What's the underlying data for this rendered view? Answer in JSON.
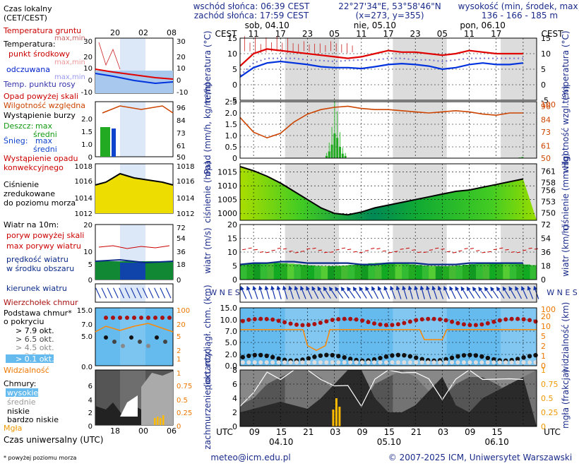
{
  "header": {
    "sunrise": "wschód słońca: 06:39 CEST",
    "sunset": "zachód słońca: 17:59 CEST",
    "coords": "22°27'34\"E, 53°58'46\"N",
    "grid": "(x=273, y=355)",
    "elev_label": "wysokość (min, środek, max)",
    "elev_values": "136 - 166 - 185 m"
  },
  "time": {
    "cest_label": "CEST",
    "utc_label": "UTC",
    "days": [
      "sob, 04.10",
      "nie, 05.10",
      "pon, 06.10"
    ],
    "cest_ticks": [
      "11",
      "17",
      "23",
      "05",
      "11",
      "17",
      "23",
      "05",
      "11",
      "17"
    ],
    "utc_ticks": [
      "09",
      "15",
      "21",
      "03",
      "09",
      "15",
      "21",
      "03",
      "09",
      "15"
    ],
    "utc_dates": [
      "04.10",
      "05.10",
      "06.10"
    ],
    "legend_top_ticks": [
      "20",
      "02",
      "08"
    ],
    "legend_bottom_ticks": [
      "18",
      "00",
      "06"
    ]
  },
  "legend": {
    "czas_lokalny": "Czas lokalny",
    "czas_lokalny2": "(CET/CEST)",
    "temp_gruntu": "Temperatura gruntu",
    "max_min1": "max,min",
    "temperatura": "Temperatura:",
    "punkt_srodkowy": "punkt środkowy",
    "max_min2": "max,min",
    "odczuwana": "odczuwana",
    "max_min3": "max,min",
    "punkt_rosy": "Temp. punktu rosy",
    "opad_powyzej": "Opad powyżej skali",
    "wilgotnosc": "Wilgotność względna",
    "burza": "Wystąpienie burzy",
    "deszcz": "Deszcz:",
    "max1": "max",
    "srednia1": "średni",
    "snieg": "Śnieg:",
    "max2": "max",
    "srednia2": "średni",
    "wystapienie1": "Wystąpienie opadu",
    "wystapienie2": "konwekcyjnego",
    "cisnienie1": "Ciśnienie",
    "cisnienie2": "zredukowane",
    "cisnienie3": "do poziomu morza",
    "wiatr": "Wiatr na 10m:",
    "poryw_skali": "poryw powyżej skali",
    "max_porywy": "max porywy wiatru",
    "predkosc1": "prędkość wiatru",
    "predkosc2": "w środku obszaru",
    "kierunek": "kierunek wiatru",
    "wierzcholek": "Wierzchołek chmur",
    "podstawa1": "Podstawa chmur*",
    "podstawa2": "o pokryciu",
    "okt79": "> 7.9 okt.",
    "okt65": "> 6.5 okt.",
    "okt45": "> 4.5 okt.",
    "okt25": "> 2.5 okt.",
    "okt01": "> 0.1 okt.",
    "widzialnosc": "Widzialność",
    "chmury": "Chmury:",
    "wysokie": "wysokie",
    "srednie": "średnie",
    "niskie": "niskie",
    "bardzo_niskie": "bardzo niskie",
    "mgla": "Mgła",
    "czas_utc": "Czas uniwersalny (UTC)",
    "footnote": "* powyżej poziomu morza"
  },
  "axes": {
    "temp_l": "temperatura (°C)",
    "temp_r": "temperatura (°C)",
    "opad_l": "opad (mm/h, kg/m²/h)",
    "opad_r": "wilgotność wzgl. (%)",
    "pres_l": "ciśnienie (hPa)",
    "pres_r": "ciśnienie (mm Hg)",
    "wind_l": "wiatr (m/s)",
    "wind_r": "wiatr (km/h)",
    "dir_l": "W N E S",
    "cloud_l": "pion. rozciągł. chm. (km)",
    "cloud_r": "widzialność (km)",
    "cover_l": "zachmurzenie (oktanty)",
    "cover_r": "mgła (frakcja)"
  },
  "footer": {
    "email": "meteo@icm.edu.pl",
    "copyright": "© 2007-2025 ICM, Uniwersytet Warszawski"
  },
  "colors": {
    "temp": "#e00000",
    "feel": "#0033dd",
    "dew": "#7777cc",
    "humidity": "#cc4400",
    "rain": "#22aa22",
    "snow": "#1144cc",
    "pressure": "#000000",
    "wind_mean": "#0a2a88",
    "gust": "#cc0000",
    "night": "#dcdcdc",
    "visibility": "#ff8800",
    "cloud_top": "#aa1111"
  },
  "chart_data": [
    {
      "type": "line",
      "title": "temperatura",
      "ylim": [
        -5,
        15
      ],
      "yticks": [
        "-5",
        "0",
        "5",
        "10",
        "15"
      ],
      "x_hours_from_start": [
        0,
        3,
        6,
        9,
        12,
        15,
        18,
        21,
        24,
        27,
        30,
        33,
        36,
        39,
        42,
        45,
        48,
        51,
        54,
        57,
        60,
        63
      ],
      "series": [
        {
          "name": "punkt środkowy",
          "values": [
            6,
            10,
            11.5,
            11,
            10.5,
            10,
            9.5,
            9,
            8.5,
            9,
            10,
            11,
            10.5,
            10.5,
            10,
            9.5,
            10,
            11,
            10.5,
            10,
            10,
            10
          ]
        },
        {
          "name": "odczuwana",
          "values": [
            2.5,
            5.5,
            7,
            7.5,
            7,
            6.5,
            5.8,
            5.5,
            5.5,
            5.2,
            5.8,
            6.5,
            6.8,
            6.5,
            6,
            5,
            5.5,
            6.5,
            7,
            6.5,
            6.5,
            7
          ]
        },
        {
          "name": "Temp. punktu rosy",
          "values": [
            3,
            7,
            8.5,
            8.5,
            8.5,
            8,
            7.8,
            7.5,
            7.8,
            8,
            8,
            8.5,
            8.5,
            8,
            8,
            7.5,
            8,
            8.5,
            8.5,
            8.5,
            8.5,
            8.5
          ]
        }
      ]
    },
    {
      "type": "line",
      "title": "opad / wilgotność",
      "ylim_left": [
        0,
        2.5
      ],
      "yticks_left": [
        "0",
        "0.5",
        "1.0",
        "1.5",
        "2.0",
        "2.5"
      ],
      "ylim_right": [
        50,
        100
      ],
      "yticks_right": [
        "50",
        "61",
        "73",
        "84",
        "96"
      ],
      "x_hours_from_start": [
        0,
        3,
        6,
        9,
        12,
        15,
        18,
        21,
        24,
        27,
        30,
        33,
        36,
        39,
        42,
        45,
        48,
        51,
        54,
        57,
        60,
        63
      ],
      "series": [
        {
          "name": "Wilgotność względna",
          "values": [
            86,
            73,
            68,
            72,
            82,
            89,
            93,
            95,
            96,
            94,
            93,
            93,
            92,
            91,
            90,
            91,
            92,
            91,
            89,
            88,
            90,
            90
          ]
        },
        {
          "name": "Deszcz średni",
          "values": [
            0,
            0,
            0,
            0,
            0,
            0,
            0.2,
            0.9,
            0.2,
            0,
            0,
            0,
            0,
            0,
            0,
            0,
            0,
            0,
            0,
            0,
            0,
            0.02
          ]
        }
      ]
    },
    {
      "type": "line",
      "title": "ciśnienie",
      "ylim_left": [
        997.5,
        1018
      ],
      "yticks_left": [
        "1000",
        "1005",
        "1010",
        "1015"
      ],
      "ylim_right": [
        748,
        763
      ],
      "yticks_right": [
        "750",
        "753",
        "756",
        "758",
        "761"
      ],
      "x_hours_from_start": [
        0,
        3,
        6,
        9,
        12,
        15,
        18,
        21,
        24,
        27,
        30,
        33,
        36,
        39,
        42,
        45,
        48,
        51,
        54,
        57,
        60,
        63
      ],
      "series": [
        {
          "name": "Ciśnienie",
          "values": [
            1017,
            1015.5,
            1013.5,
            1011,
            1008,
            1005,
            1002,
            1000,
            999.5,
            1000.5,
            1002,
            1003,
            1004,
            1005,
            1006,
            1007,
            1008,
            1008.5,
            1009.5,
            1010.5,
            1011.5,
            1012.5
          ]
        }
      ]
    },
    {
      "type": "line",
      "title": "wiatr",
      "ylim_left": [
        0,
        20
      ],
      "yticks_left": [
        "0",
        "5",
        "10",
        "15",
        "20"
      ],
      "ylim_right": [
        0,
        72
      ],
      "yticks_right": [
        "0",
        "18",
        "36",
        "54",
        "72"
      ],
      "x_hours_from_start": [
        0,
        3,
        6,
        9,
        12,
        15,
        18,
        21,
        24,
        27,
        30,
        33,
        36,
        39,
        42,
        45,
        48,
        51,
        54,
        57,
        60,
        63
      ],
      "series": [
        {
          "name": "max porywy wiatru",
          "values": [
            10.5,
            11,
            11.5,
            11,
            12,
            10.5,
            11,
            10.5,
            10.5,
            10,
            10.5,
            11,
            11,
            10.5,
            11,
            10.5,
            11,
            11,
            10.5,
            11,
            11,
            11
          ]
        },
        {
          "name": "prędkość wiatru",
          "values": [
            5.5,
            6,
            6,
            6.5,
            6.5,
            6,
            6,
            6,
            6,
            5.5,
            5.5,
            6,
            6,
            6,
            5.5,
            5.5,
            5.5,
            6,
            6,
            6,
            6,
            6
          ]
        }
      ]
    },
    {
      "type": "scatter",
      "title": "chmury",
      "ylim_left": [
        0,
        15
      ],
      "yticks_left": [
        "0.0",
        "2.0",
        "5.0",
        "7.0",
        "10.0",
        "15.0"
      ],
      "ylim_right": [
        0,
        100
      ],
      "yticks_right": [
        "0",
        "1",
        "2",
        "5",
        "10",
        "20",
        "100"
      ],
      "x_hours_from_start": [
        0,
        3,
        6,
        9,
        12,
        15,
        18,
        21,
        24,
        27,
        30,
        33,
        36,
        39,
        42,
        45,
        48,
        51,
        54,
        57,
        60,
        63
      ],
      "series": [
        {
          "name": "Wierzchołek chmur",
          "values": [
            8,
            10,
            10.5,
            10,
            10,
            9.5,
            8,
            8.5,
            10,
            9.5,
            9,
            9,
            9,
            9,
            9,
            9,
            9,
            8.5,
            9,
            9,
            8.5,
            8
          ]
        },
        {
          "name": "Widzialność",
          "values": [
            20,
            20,
            20,
            20,
            20,
            20,
            5,
            20,
            20,
            20,
            20,
            20,
            20,
            20,
            5,
            20,
            20,
            20,
            20,
            20,
            20,
            20
          ]
        }
      ]
    },
    {
      "type": "area",
      "title": "zachmurzenie",
      "ylim_left": [
        0,
        8
      ],
      "yticks_left": [
        "0",
        "2",
        "4",
        "6",
        "8"
      ],
      "ylim_right": [
        0,
        1
      ],
      "yticks_right": [
        "0",
        "0.25",
        "0.5",
        "0.75",
        "1"
      ],
      "x_hours_from_start": [
        0,
        3,
        6,
        9,
        12,
        15,
        18,
        21,
        24,
        27,
        30,
        33,
        36,
        39,
        42,
        45,
        48,
        51,
        54,
        57,
        60,
        63
      ],
      "series": [
        {
          "name": "niskie",
          "values": [
            2,
            2.5,
            3,
            3.5,
            3,
            2.5,
            4,
            6,
            8,
            8,
            4,
            2,
            2,
            3,
            5,
            7,
            3,
            2,
            4,
            5,
            6,
            7
          ]
        },
        {
          "name": "wysokie",
          "values": [
            3,
            4,
            6,
            7,
            8,
            8,
            7,
            5,
            4,
            3,
            6,
            7,
            8,
            7,
            5,
            4,
            6,
            7,
            7,
            6,
            5,
            7
          ]
        }
      ]
    }
  ]
}
